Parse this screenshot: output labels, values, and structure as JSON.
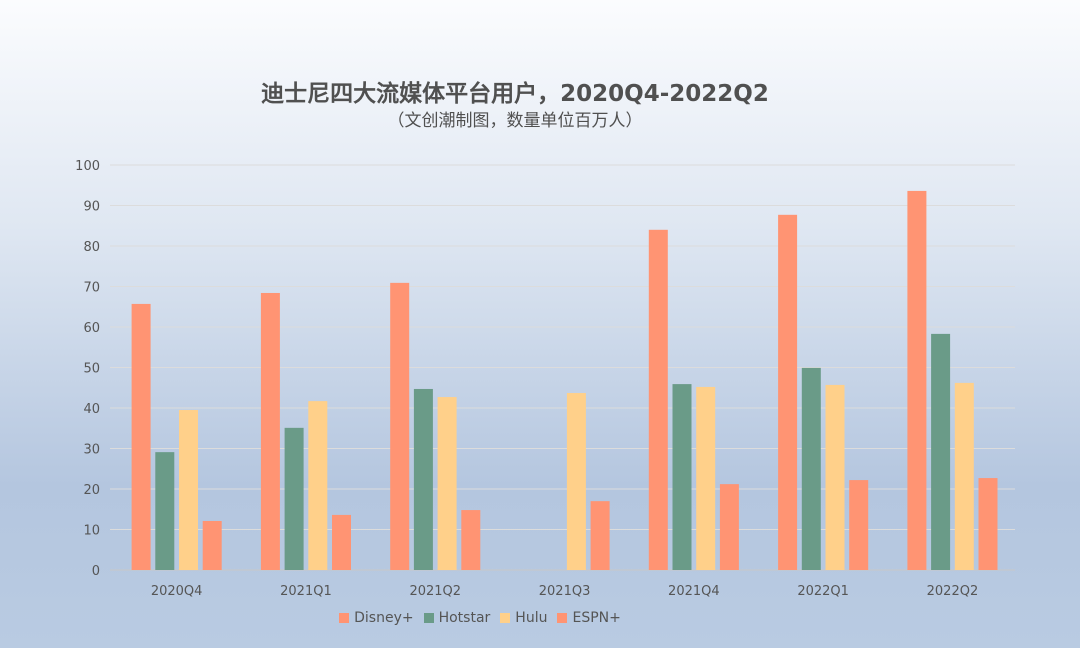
{
  "chart_data": {
    "type": "bar",
    "title": "迪士尼四大流媒体平台用户，2020Q4-2022Q2",
    "subtitle": "（文创潮制图，数量单位百万人）",
    "categories": [
      "2020Q4",
      "2021Q1",
      "2021Q2",
      "2021Q3",
      "2021Q4",
      "2022Q1",
      "2022Q2"
    ],
    "ylim": [
      0,
      100
    ],
    "yticks": [
      0,
      10,
      20,
      30,
      40,
      50,
      60,
      70,
      80,
      90,
      100
    ],
    "grid": true,
    "legend_position": "bottom",
    "series": [
      {
        "name": "Disney+",
        "color": "#ff9473",
        "values": [
          65.7,
          68.4,
          70.9,
          null,
          84.0,
          87.7,
          93.6
        ]
      },
      {
        "name": "Hotstar",
        "color": "#6a9b88",
        "values": [
          29.1,
          35.1,
          44.7,
          null,
          45.9,
          49.9,
          58.3
        ]
      },
      {
        "name": "Hulu",
        "color": "#ffd08a",
        "values": [
          39.5,
          41.7,
          42.7,
          43.7,
          45.2,
          45.7,
          46.2
        ]
      },
      {
        "name": "ESPN+",
        "color": "#ff9473",
        "values": [
          12.1,
          13.6,
          14.8,
          17.0,
          21.2,
          22.2,
          22.7
        ]
      }
    ]
  }
}
